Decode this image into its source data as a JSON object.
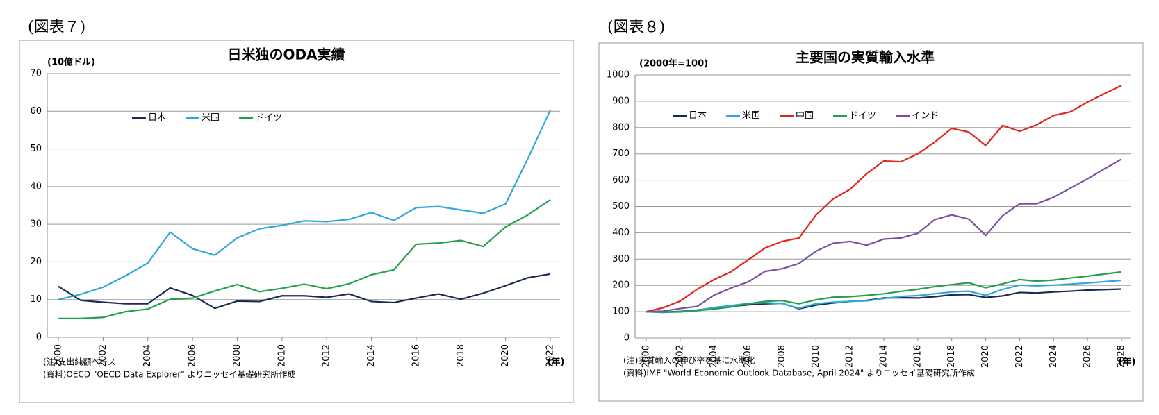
{
  "chart_data": [
    {
      "type": "line",
      "figure_label": "(図表７)",
      "title": "日米独のODA実績",
      "unit_label": "(10億ドル)",
      "x_label": "(年)",
      "notes": [
        "(注)支出純額ベース",
        "(資料)OECD \"OECD Data Explorer\" よりニッセイ基礎研究所作成"
      ],
      "x": [
        2000,
        2001,
        2002,
        2003,
        2004,
        2005,
        2006,
        2007,
        2008,
        2009,
        2010,
        2011,
        2012,
        2013,
        2014,
        2015,
        2016,
        2017,
        2018,
        2019,
        2020,
        2021,
        2022
      ],
      "xlim": [
        2000,
        2022
      ],
      "xticks": [
        2000,
        2002,
        2004,
        2006,
        2008,
        2010,
        2012,
        2014,
        2016,
        2018,
        2020,
        2022
      ],
      "ylim": [
        0,
        70
      ],
      "yticks": [
        0,
        10,
        20,
        30,
        40,
        50,
        60,
        70
      ],
      "grid": true,
      "legend": "upper left",
      "series": [
        {
          "name": "日本",
          "color": "#1b2a55",
          "values": [
            13.5,
            9.8,
            9.3,
            8.9,
            8.9,
            13.1,
            11.1,
            7.7,
            9.6,
            9.5,
            11.0,
            11.0,
            10.6,
            11.5,
            9.5,
            9.2,
            10.4,
            11.5,
            10.1,
            11.7,
            13.7,
            15.8,
            16.8
          ]
        },
        {
          "name": "米国",
          "color": "#2ea8dc",
          "values": [
            10.0,
            11.4,
            13.3,
            16.3,
            19.7,
            27.9,
            23.5,
            21.8,
            26.4,
            28.8,
            29.7,
            30.9,
            30.7,
            31.3,
            33.1,
            31.0,
            34.4,
            34.7,
            33.8,
            32.9,
            35.4,
            47.5,
            60.3
          ]
        },
        {
          "name": "ドイツ",
          "color": "#22a04b",
          "values": [
            5.0,
            5.0,
            5.3,
            6.8,
            7.5,
            10.1,
            10.4,
            12.3,
            14.0,
            12.1,
            13.0,
            14.1,
            12.9,
            14.2,
            16.6,
            17.9,
            24.7,
            25.0,
            25.7,
            24.1,
            29.3,
            32.5,
            36.5
          ]
        }
      ]
    },
    {
      "type": "line",
      "figure_label": "(図表８)",
      "title": "主要国の実質輸入水準",
      "unit_label": "(2000年=100)",
      "x_label": "(年)",
      "notes": [
        "(注)実質輸入の伸び率を基に水準化",
        "(資料)IMF \"World Economic Outlook Database, April 2024\" よりニッセイ基礎研究所作成"
      ],
      "x": [
        2000,
        2001,
        2002,
        2003,
        2004,
        2005,
        2006,
        2007,
        2008,
        2009,
        2010,
        2011,
        2012,
        2013,
        2014,
        2015,
        2016,
        2017,
        2018,
        2019,
        2020,
        2021,
        2022,
        2023,
        2024,
        2025,
        2026,
        2027,
        2028
      ],
      "xlim": [
        2000,
        2028
      ],
      "xticks": [
        2000,
        2002,
        2004,
        2006,
        2008,
        2010,
        2012,
        2014,
        2016,
        2018,
        2020,
        2022,
        2024,
        2026,
        2028
      ],
      "ylim": [
        0,
        1000
      ],
      "yticks": [
        0,
        100,
        200,
        300,
        400,
        500,
        600,
        700,
        800,
        900,
        1000
      ],
      "grid": true,
      "legend": "upper left",
      "series": [
        {
          "name": "日本",
          "color": "#1b2a55",
          "values": [
            100,
            98,
            101,
            106,
            114,
            120,
            126,
            130,
            132,
            111,
            125,
            133,
            139,
            143,
            152,
            153,
            152,
            157,
            164,
            165,
            154,
            160,
            173,
            171,
            175,
            178,
            182,
            184,
            186
          ]
        },
        {
          "name": "米国",
          "color": "#2ea8dc",
          "values": [
            100,
            97,
            100,
            105,
            116,
            123,
            131,
            134,
            131,
            113,
            130,
            136,
            139,
            141,
            150,
            158,
            161,
            168,
            175,
            178,
            162,
            185,
            201,
            198,
            201,
            205,
            209,
            214,
            219
          ]
        },
        {
          "name": "中国",
          "color": "#e0241b",
          "values": [
            100,
            115,
            140,
            185,
            222,
            252,
            297,
            342,
            367,
            380,
            467,
            528,
            565,
            625,
            673,
            670,
            700,
            745,
            797,
            783,
            732,
            808,
            786,
            810,
            846,
            860,
            897,
            929,
            960
          ]
        },
        {
          "name": "ドイツ",
          "color": "#22a04b",
          "values": [
            100,
            99,
            99,
            104,
            110,
            118,
            130,
            139,
            142,
            130,
            145,
            155,
            157,
            162,
            168,
            177,
            185,
            195,
            203,
            210,
            191,
            206,
            222,
            216,
            220,
            228,
            235,
            243,
            251
          ]
        },
        {
          "name": "インド",
          "color": "#7a4fa0",
          "values": [
            100,
            102,
            112,
            120,
            163,
            190,
            213,
            253,
            263,
            283,
            330,
            360,
            367,
            353,
            376,
            380,
            398,
            450,
            468,
            452,
            390,
            465,
            510,
            510,
            535,
            570,
            605,
            643,
            680
          ]
        }
      ]
    }
  ]
}
